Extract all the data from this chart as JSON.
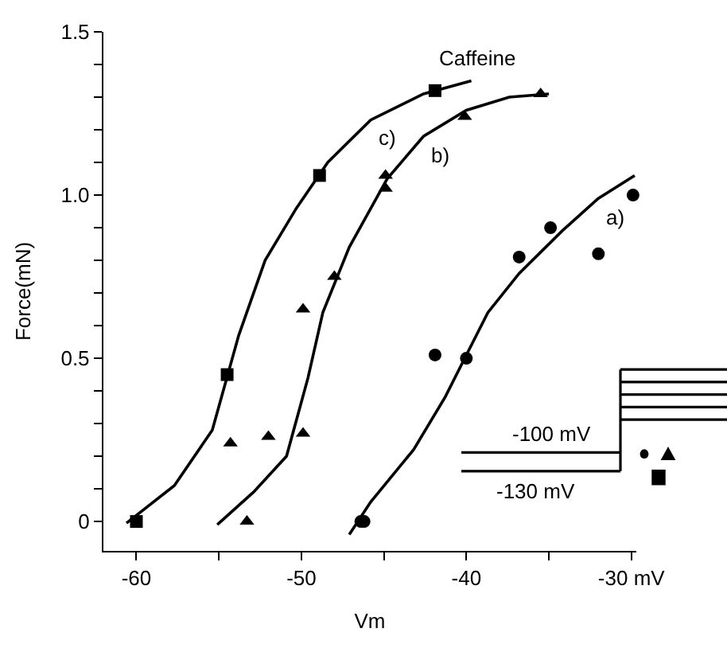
{
  "chart_data": {
    "type": "scatter",
    "xlabel": "Vm",
    "ylabel": "Force(mN)",
    "xlim": [
      -62.0,
      -29.7
    ],
    "ylim": [
      -0.09,
      1.5
    ],
    "xticks": [
      -60,
      {
        "value": -55,
        "label": null
      },
      -50,
      {
        "value": -45,
        "label": null
      },
      -40,
      {
        "value": -35,
        "label": null
      },
      {
        "value": -30,
        "label": "-30 mV"
      }
    ],
    "yticks": [
      0,
      {
        "value": 0.1,
        "label": null
      },
      {
        "value": 0.2,
        "label": null
      },
      {
        "value": 0.3,
        "label": null
      },
      {
        "value": 0.4,
        "label": null
      },
      0.5,
      {
        "value": 0.6,
        "label": null
      },
      {
        "value": 0.7,
        "label": null
      },
      {
        "value": 0.8,
        "label": null
      },
      {
        "value": 0.9,
        "label": null
      },
      {
        "value": 1.0,
        "label": "1.0"
      },
      {
        "value": 1.1,
        "label": null
      },
      {
        "value": 1.2,
        "label": null
      },
      {
        "value": 1.3,
        "label": null
      },
      {
        "value": 1.4,
        "label": null
      },
      1.5
    ],
    "series": [
      {
        "marker": "circle",
        "color": "#000000",
        "x": [
          -46.4,
          -46.2,
          -41.9,
          -40.0,
          -36.8,
          -34.9,
          -32.0,
          -29.9
        ],
        "values": [
          0,
          0,
          0.51,
          0.5,
          0.81,
          0.9,
          0.82,
          1.0
        ]
      },
      {
        "marker": "triangle",
        "color": "#000000",
        "x": [
          -54.3,
          -53.3,
          -52.0,
          -49.9,
          -49.9,
          -48.0,
          -44.9,
          -44.9,
          -40.1,
          -35.5
        ],
        "values": [
          0.24,
          0,
          0.26,
          0.65,
          0.27,
          0.75,
          1.06,
          1.02,
          1.24,
          1.31
        ]
      },
      {
        "marker": "square",
        "color": "#000000",
        "x": [
          -60,
          -54.5,
          -48.9,
          -41.9
        ],
        "values": [
          0,
          0.45,
          1.06,
          1.32
        ]
      },
      {
        "type": "line",
        "name": "a)",
        "color": "#000000",
        "line_style": "solid",
        "x": [
          -47.1,
          -45.8,
          -43.2,
          -41.3,
          -40.3,
          -38.7,
          -36.8,
          -34.2,
          -32.0,
          -29.8
        ],
        "values": [
          -0.04,
          0.06,
          0.22,
          0.38,
          0.48,
          0.64,
          0.76,
          0.89,
          0.99,
          1.06
        ]
      },
      {
        "type": "line",
        "name": "b)",
        "color": "#000000",
        "line_style": "solid",
        "x": [
          -55.1,
          -52.9,
          -50.9,
          -49.6,
          -48.7,
          -47.1,
          -44.8,
          -42.6,
          -40.0,
          -37.4,
          -35.0
        ],
        "values": [
          -0.01,
          0.09,
          0.2,
          0.44,
          0.64,
          0.84,
          1.05,
          1.18,
          1.26,
          1.3,
          1.31
        ]
      },
      {
        "type": "line",
        "name": "c)",
        "color": "#000000",
        "line_style": "solid",
        "x": [
          -60.6,
          -57.7,
          -55.4,
          -53.8,
          -52.2,
          -50.3,
          -48.4,
          -45.8,
          -42.6,
          -39.7
        ],
        "values": [
          -0.005,
          0.11,
          0.28,
          0.57,
          0.8,
          0.96,
          1.1,
          1.23,
          1.31,
          1.35
        ]
      }
    ],
    "annotations": [
      "Caffeine",
      "-100 mV",
      "-130 mV"
    ]
  }
}
